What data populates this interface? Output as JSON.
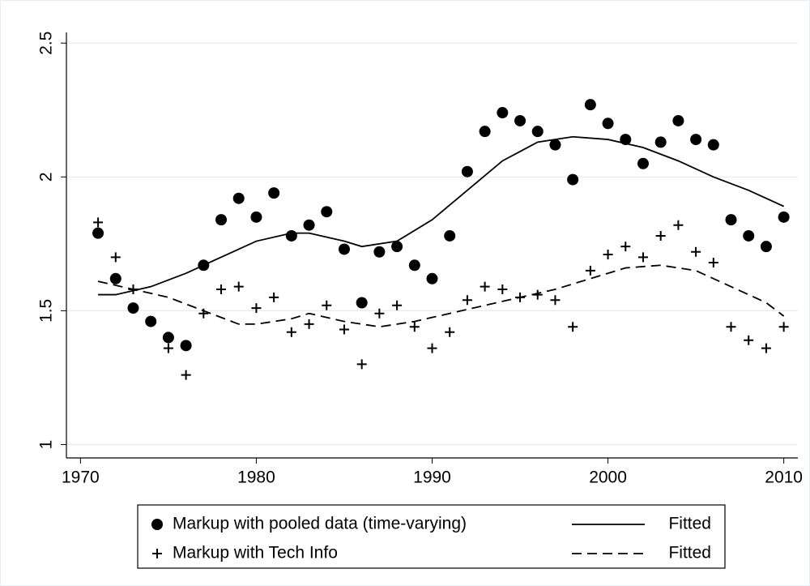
{
  "chart_data": {
    "type": "scatter",
    "xlim": [
      1969.2,
      2010.8
    ],
    "xticks": [
      1970,
      1980,
      1990,
      2000,
      2010
    ],
    "ylim": [
      0.95,
      2.54
    ],
    "yticks": [
      1,
      1.5,
      2,
      2.5
    ],
    "grid": true,
    "series": [
      {
        "name": "Markup with pooled data (time-varying)",
        "type": "scatter",
        "marker": "circle",
        "color": "#000000",
        "x": [
          1971,
          1972,
          1973,
          1974,
          1975,
          1976,
          1977,
          1978,
          1979,
          1980,
          1981,
          1982,
          1983,
          1984,
          1985,
          1986,
          1987,
          1988,
          1989,
          1990,
          1991,
          1992,
          1993,
          1994,
          1995,
          1996,
          1997,
          1998,
          1999,
          2000,
          2001,
          2002,
          2003,
          2004,
          2005,
          2006,
          2007,
          2008,
          2009,
          2010
        ],
        "values": [
          1.79,
          1.62,
          1.51,
          1.46,
          1.4,
          1.37,
          1.67,
          1.84,
          1.92,
          1.85,
          1.94,
          1.78,
          1.82,
          1.87,
          1.73,
          1.53,
          1.72,
          1.74,
          1.67,
          1.62,
          1.78,
          2.02,
          2.17,
          2.24,
          2.21,
          2.17,
          2.12,
          1.99,
          2.27,
          2.2,
          2.14,
          2.05,
          2.13,
          2.21,
          2.14,
          2.12,
          1.84,
          1.78,
          1.74,
          1.85
        ]
      },
      {
        "name": "Fitted",
        "type": "line",
        "dash": "solid",
        "color": "#000000",
        "x": [
          1971,
          1972,
          1974,
          1976,
          1978,
          1980,
          1982,
          1983,
          1985,
          1986,
          1988,
          1990,
          1992,
          1994,
          1996,
          1998,
          2000,
          2002,
          2004,
          2006,
          2008,
          2010
        ],
        "values": [
          1.56,
          1.56,
          1.59,
          1.64,
          1.7,
          1.76,
          1.79,
          1.79,
          1.76,
          1.74,
          1.76,
          1.84,
          1.95,
          2.06,
          2.13,
          2.15,
          2.14,
          2.11,
          2.06,
          2.0,
          1.95,
          1.89
        ]
      },
      {
        "name": "Markup with Tech Info",
        "type": "scatter",
        "marker": "plus",
        "color": "#000000",
        "x": [
          1971,
          1972,
          1973,
          1975,
          1976,
          1977,
          1978,
          1979,
          1980,
          1981,
          1982,
          1983,
          1984,
          1985,
          1986,
          1987,
          1988,
          1989,
          1990,
          1991,
          1992,
          1993,
          1994,
          1995,
          1996,
          1997,
          1998,
          1999,
          2000,
          2001,
          2002,
          2003,
          2004,
          2005,
          2006,
          2007,
          2008,
          2009,
          2010
        ],
        "values": [
          1.83,
          1.7,
          1.58,
          1.36,
          1.26,
          1.49,
          1.58,
          1.59,
          1.51,
          1.55,
          1.42,
          1.45,
          1.52,
          1.43,
          1.3,
          1.49,
          1.52,
          1.44,
          1.36,
          1.42,
          1.54,
          1.59,
          1.58,
          1.55,
          1.56,
          1.54,
          1.44,
          1.65,
          1.71,
          1.74,
          1.7,
          1.78,
          1.82,
          1.72,
          1.68,
          1.44,
          1.39,
          1.36,
          1.44
        ]
      },
      {
        "name": "Fitted",
        "type": "line",
        "dash": "dashed",
        "color": "#000000",
        "x": [
          1971,
          1973,
          1975,
          1977,
          1979,
          1980,
          1982,
          1983,
          1985,
          1987,
          1989,
          1991,
          1993,
          1995,
          1997,
          1999,
          2001,
          2003,
          2005,
          2007,
          2009,
          2010
        ],
        "values": [
          1.61,
          1.58,
          1.55,
          1.5,
          1.45,
          1.45,
          1.47,
          1.49,
          1.46,
          1.44,
          1.46,
          1.49,
          1.52,
          1.55,
          1.58,
          1.62,
          1.66,
          1.67,
          1.65,
          1.59,
          1.53,
          1.48
        ]
      }
    ]
  }
}
